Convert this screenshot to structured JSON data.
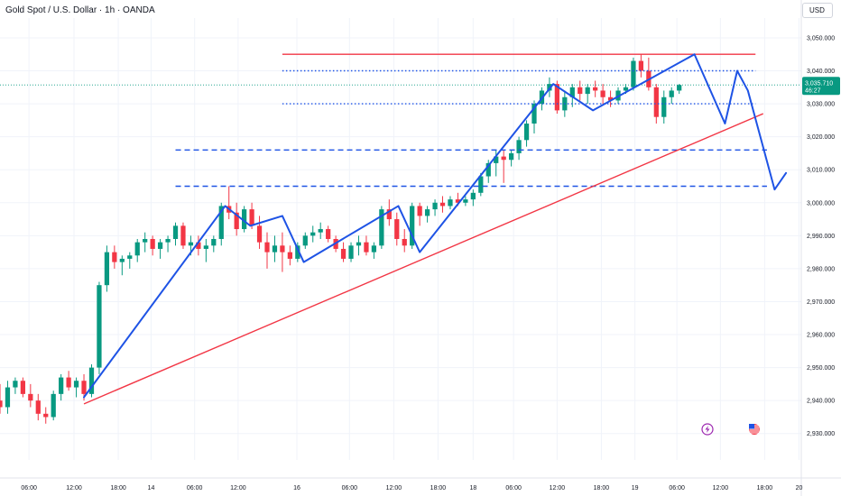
{
  "header": {
    "title": "Gold Spot / U.S. Dollar · 1h · OANDA",
    "currency": "USD"
  },
  "price_tag": {
    "price": "3,035.710",
    "countdown": "46:27"
  },
  "colors": {
    "up": "#089981",
    "down": "#f23645",
    "drawing_blue": "#1e53e5",
    "trend_red": "#f23645",
    "axis_text": "#131722",
    "grid": "#f0f3fa"
  },
  "icons": {
    "lightning": "lightning-icon",
    "flag": "us-flag-icon"
  },
  "chart_data": {
    "type": "candlestick",
    "y_range": [
      2922,
      3056
    ],
    "x_range": [
      0,
      105
    ],
    "y_ticks": [
      2930,
      2940,
      2950,
      2960,
      2970,
      2980,
      2990,
      3000,
      3010,
      3020,
      3030,
      3040,
      3050
    ],
    "y_tick_labels": [
      "2,930.000",
      "2,940.000",
      "2,950.000",
      "2,960.000",
      "2,970.000",
      "2,980.000",
      "2,990.000",
      "3,000.000",
      "3,010.000",
      "3,020.000",
      "3,030.000",
      "3,040.000",
      "3,050.000"
    ],
    "x_ticks": [
      {
        "i": 3.8,
        "label": "06:00"
      },
      {
        "i": 9.7,
        "label": "12:00"
      },
      {
        "i": 15.5,
        "label": "18:00"
      },
      {
        "i": 19.8,
        "label": "14"
      },
      {
        "i": 25.5,
        "label": "06:00"
      },
      {
        "i": 31.2,
        "label": "12:00"
      },
      {
        "i": 38.9,
        "label": "16"
      },
      {
        "i": 45.8,
        "label": "06:00"
      },
      {
        "i": 51.6,
        "label": "12:00"
      },
      {
        "i": 57.4,
        "label": "18:00"
      },
      {
        "i": 62.0,
        "label": "18"
      },
      {
        "i": 67.3,
        "label": "06:00"
      },
      {
        "i": 73.0,
        "label": "12:00"
      },
      {
        "i": 78.8,
        "label": "18:00"
      },
      {
        "i": 83.2,
        "label": "19"
      },
      {
        "i": 88.7,
        "label": "06:00"
      },
      {
        "i": 94.4,
        "label": "12:00"
      },
      {
        "i": 100.2,
        "label": "18:00"
      },
      {
        "i": 104.7,
        "label": "20"
      }
    ],
    "candles": [
      [
        2940,
        2945,
        2936,
        2938
      ],
      [
        2938,
        2946,
        2936,
        2944
      ],
      [
        2944,
        2947,
        2942,
        2946
      ],
      [
        2946,
        2947,
        2941,
        2942
      ],
      [
        2942,
        2945,
        2938,
        2940
      ],
      [
        2940,
        2942,
        2934,
        2936
      ],
      [
        2936,
        2938,
        2933,
        2935
      ],
      [
        2935,
        2943,
        2934,
        2942
      ],
      [
        2942,
        2948,
        2940,
        2947
      ],
      [
        2947,
        2949,
        2943,
        2944
      ],
      [
        2944,
        2947,
        2941,
        2946
      ],
      [
        2946,
        2948,
        2940,
        2942
      ],
      [
        2942,
        2951,
        2941,
        2950
      ],
      [
        2950,
        2976,
        2948,
        2975
      ],
      [
        2975,
        2987,
        2973,
        2985
      ],
      [
        2985,
        2987,
        2980,
        2982
      ],
      [
        2982,
        2984,
        2978,
        2983
      ],
      [
        2983,
        2985,
        2980,
        2984
      ],
      [
        2984,
        2989,
        2982,
        2988
      ],
      [
        2988,
        2991,
        2985,
        2989
      ],
      [
        2989,
        2990,
        2984,
        2986
      ],
      [
        2986,
        2989,
        2983,
        2988
      ],
      [
        2988,
        2990,
        2985,
        2989
      ],
      [
        2989,
        2994,
        2987,
        2993
      ],
      [
        2993,
        2994,
        2986,
        2987
      ],
      [
        2987,
        2990,
        2984,
        2988
      ],
      [
        2988,
        2990,
        2984,
        2986
      ],
      [
        2986,
        2989,
        2982,
        2987
      ],
      [
        2987,
        2990,
        2985,
        2989
      ],
      [
        2989,
        3000,
        2987,
        2999
      ],
      [
        2999,
        3005,
        2995,
        2997
      ],
      [
        2997,
        3000,
        2990,
        2992
      ],
      [
        2992,
        2999,
        2991,
        2998
      ],
      [
        2998,
        3000,
        2992,
        2993
      ],
      [
        2993,
        2996,
        2986,
        2988
      ],
      [
        2988,
        2991,
        2980,
        2985
      ],
      [
        2985,
        2990,
        2982,
        2987
      ],
      [
        2987,
        2991,
        2979,
        2985
      ],
      [
        2985,
        2987,
        2981,
        2983
      ],
      [
        2983,
        2988,
        2982,
        2987
      ],
      [
        2987,
        2991,
        2986,
        2990
      ],
      [
        2990,
        2993,
        2988,
        2991
      ],
      [
        2991,
        2994,
        2989,
        2992
      ],
      [
        2992,
        2993,
        2988,
        2989
      ],
      [
        2989,
        2990,
        2985,
        2986
      ],
      [
        2986,
        2988,
        2982,
        2983
      ],
      [
        2983,
        2988,
        2982,
        2987
      ],
      [
        2987,
        2990,
        2984,
        2988
      ],
      [
        2988,
        2990,
        2984,
        2985
      ],
      [
        2985,
        2988,
        2983,
        2987
      ],
      [
        2987,
        2999,
        2986,
        2998
      ],
      [
        2998,
        3001,
        2993,
        2995
      ],
      [
        2995,
        2997,
        2987,
        2989
      ],
      [
        2989,
        2992,
        2985,
        2987
      ],
      [
        2987,
        3000,
        2986,
        2999
      ],
      [
        2999,
        3000,
        2993,
        2996
      ],
      [
        2996,
        2999,
        2994,
        2998
      ],
      [
        2998,
        3001,
        2996,
        3000
      ],
      [
        3000,
        3002,
        2997,
        2999
      ],
      [
        2999,
        3002,
        2998,
        3001
      ],
      [
        3001,
        3003,
        2999,
        3000
      ],
      [
        3000,
        3002,
        2999,
        3001
      ],
      [
        3001,
        3004,
        2999,
        3003
      ],
      [
        3003,
        3009,
        3002,
        3008
      ],
      [
        3008,
        3013,
        3006,
        3012
      ],
      [
        3012,
        3016,
        3008,
        3014
      ],
      [
        3014,
        3016,
        3006,
        3013
      ],
      [
        3013,
        3016,
        3011,
        3015
      ],
      [
        3015,
        3020,
        3013,
        3019
      ],
      [
        3019,
        3025,
        3017,
        3024
      ],
      [
        3024,
        3031,
        3021,
        3030
      ],
      [
        3030,
        3035,
        3028,
        3034
      ],
      [
        3034,
        3038,
        3032,
        3036
      ],
      [
        3036,
        3037,
        3027,
        3028
      ],
      [
        3028,
        3034,
        3026,
        3032
      ],
      [
        3032,
        3036,
        3029,
        3035
      ],
      [
        3035,
        3037,
        3031,
        3033
      ],
      [
        3033,
        3036,
        3030,
        3035
      ],
      [
        3035,
        3037,
        3032,
        3034
      ],
      [
        3034,
        3036,
        3030,
        3032
      ],
      [
        3032,
        3034,
        3029,
        3031
      ],
      [
        3031,
        3035,
        3030,
        3034
      ],
      [
        3034,
        3036,
        3033,
        3035
      ],
      [
        3035,
        3044,
        3034,
        3043
      ],
      [
        3043,
        3045,
        3038,
        3040
      ],
      [
        3040,
        3044,
        3034,
        3035
      ],
      [
        3035,
        3036,
        3024,
        3026
      ],
      [
        3026,
        3034,
        3024,
        3032
      ],
      [
        3032,
        3035,
        3030,
        3034
      ],
      [
        3034,
        3036,
        3033,
        3035.7
      ]
    ],
    "current_price": 3035.71,
    "drawings": {
      "resistance_line": {
        "y": 3045,
        "x_from": 37,
        "x_to": 99
      },
      "blue_dotted_levels": [
        3040,
        3030
      ],
      "blue_dashed_levels": [
        3016,
        3005
      ],
      "trend_line": {
        "from": [
          11,
          2939
        ],
        "to": [
          100,
          3027
        ]
      },
      "zigzag_path": [
        [
          11,
          2941
        ],
        [
          29.5,
          2999
        ],
        [
          32.8,
          2993
        ],
        [
          37,
          2996
        ],
        [
          39.8,
          2982
        ],
        [
          52.2,
          2999
        ],
        [
          55,
          2985
        ],
        [
          72.5,
          3036
        ],
        [
          77.7,
          3028
        ],
        [
          91,
          3045
        ],
        [
          95,
          3024
        ],
        [
          96.6,
          3040
        ],
        [
          98,
          3034
        ],
        [
          101.5,
          3004
        ],
        [
          103,
          3009
        ]
      ]
    }
  }
}
